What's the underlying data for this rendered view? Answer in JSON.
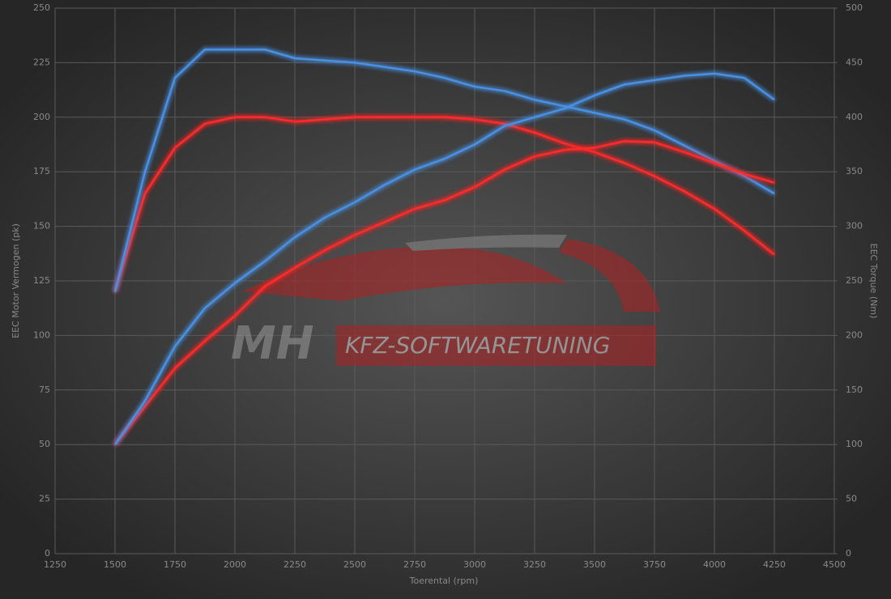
{
  "chart_data": {
    "type": "line",
    "xlabel": "Toerental (rpm)",
    "ylabel": "EEC Motor Vermogen (pk)",
    "y2label": "EEC Torque (Nm)",
    "watermark": {
      "mark": "MH",
      "text": "KFZ-SOFTWARETUNING"
    },
    "x": [
      1500,
      1625,
      1750,
      1875,
      2000,
      2125,
      2250,
      2375,
      2500,
      2625,
      2750,
      2875,
      3000,
      3125,
      3250,
      3375,
      3500,
      3625,
      3750,
      3875,
      4000,
      4125,
      4250
    ],
    "xlim": [
      1250,
      4500
    ],
    "xticks": [
      1250,
      1500,
      1750,
      2000,
      2250,
      2500,
      2750,
      3000,
      3250,
      3500,
      3750,
      4000,
      4250,
      4500
    ],
    "ylim": [
      0,
      250
    ],
    "yticks": [
      0,
      25,
      50,
      75,
      100,
      125,
      150,
      175,
      200,
      225,
      250
    ],
    "y2lim": [
      0,
      500
    ],
    "y2ticks": [
      0,
      50,
      100,
      150,
      200,
      250,
      300,
      350,
      400,
      450,
      500
    ],
    "grid": true,
    "series": [
      {
        "color": "#ff2a2a",
        "values": [
          120,
          165,
          186,
          197,
          200,
          200,
          198,
          199,
          200,
          200,
          200,
          200,
          199,
          197,
          193,
          188,
          184,
          179,
          173,
          166,
          158,
          148,
          137
        ]
      },
      {
        "color": "#4a90e2",
        "values": [
          120,
          175,
          218,
          231,
          231,
          231,
          227,
          226,
          225,
          223,
          221,
          218,
          214,
          212,
          208,
          205,
          202,
          199,
          194,
          187,
          180,
          173,
          165
        ]
      },
      {
        "color": "#ff2a2a",
        "axis": "y2",
        "values": [
          100,
          135,
          170,
          195,
          218,
          245,
          262,
          278,
          292,
          304,
          316,
          324,
          336,
          352,
          364,
          370,
          372,
          378,
          377,
          368,
          358,
          348,
          340
        ]
      },
      {
        "color": "#4a90e2",
        "axis": "y2",
        "values": [
          100,
          140,
          190,
          225,
          248,
          268,
          290,
          308,
          322,
          338,
          352,
          362,
          375,
          392,
          400,
          408,
          420,
          430,
          434,
          438,
          440,
          436,
          416
        ]
      }
    ]
  }
}
